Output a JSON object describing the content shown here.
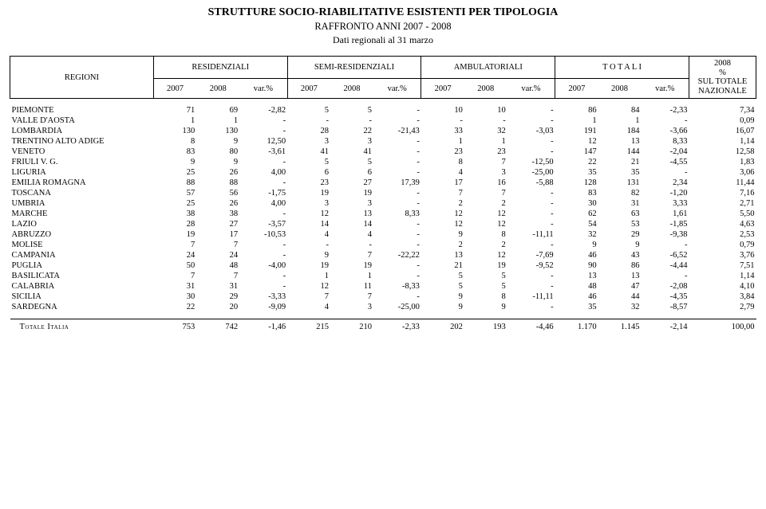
{
  "title_line1": "STRUTTURE SOCIO-RIABILITATIVE  ESISTENTI PER TIPOLOGIA",
  "title_line2": "RAFFRONTO ANNI  2007 - 2008",
  "title_line3": "Dati regionali al 31 marzo",
  "header": {
    "regioni": "REGIONI",
    "groups": [
      "RESIDENZIALI",
      "SEMI-RESIDENZIALI",
      "AMBULATORIALI",
      "T O T A L I"
    ],
    "pct_col": [
      "2008",
      "%",
      "SUL TOTALE",
      "NAZIONALE"
    ],
    "y2007": "2007",
    "y2008": "2008",
    "var": "var.%"
  },
  "rows": [
    {
      "region": "PIEMONTE",
      "r07": "71",
      "r08": "69",
      "rv": "-2,82",
      "s07": "5",
      "s08": "5",
      "sv": "-",
      "a07": "10",
      "a08": "10",
      "av": "-",
      "t07": "86",
      "t08": "84",
      "tv": "-2,33",
      "pct": "7,34"
    },
    {
      "region": "VALLE D'AOSTA",
      "r07": "1",
      "r08": "1",
      "rv": "-",
      "s07": "-",
      "s08": "-",
      "sv": "-",
      "a07": "-",
      "a08": "-",
      "av": "-",
      "t07": "1",
      "t08": "1",
      "tv": "-",
      "pct": "0,09"
    },
    {
      "region": "LOMBARDIA",
      "r07": "130",
      "r08": "130",
      "rv": "-",
      "s07": "28",
      "s08": "22",
      "sv": "-21,43",
      "a07": "33",
      "a08": "32",
      "av": "-3,03",
      "t07": "191",
      "t08": "184",
      "tv": "-3,66",
      "pct": "16,07"
    },
    {
      "region": "TRENTINO ALTO ADIGE",
      "r07": "8",
      "r08": "9",
      "rv": "12,50",
      "s07": "3",
      "s08": "3",
      "sv": "-",
      "a07": "1",
      "a08": "1",
      "av": "-",
      "t07": "12",
      "t08": "13",
      "tv": "8,33",
      "pct": "1,14"
    },
    {
      "region": "VENETO",
      "r07": "83",
      "r08": "80",
      "rv": "-3,61",
      "s07": "41",
      "s08": "41",
      "sv": "-",
      "a07": "23",
      "a08": "23",
      "av": "-",
      "t07": "147",
      "t08": "144",
      "tv": "-2,04",
      "pct": "12,58"
    },
    {
      "region": "FRIULI V. G.",
      "r07": "9",
      "r08": "9",
      "rv": "-",
      "s07": "5",
      "s08": "5",
      "sv": "-",
      "a07": "8",
      "a08": "7",
      "av": "-12,50",
      "t07": "22",
      "t08": "21",
      "tv": "-4,55",
      "pct": "1,83"
    },
    {
      "region": "LIGURIA",
      "r07": "25",
      "r08": "26",
      "rv": "4,00",
      "s07": "6",
      "s08": "6",
      "sv": "-",
      "a07": "4",
      "a08": "3",
      "av": "-25,00",
      "t07": "35",
      "t08": "35",
      "tv": "-",
      "pct": "3,06"
    },
    {
      "region": "EMILIA ROMAGNA",
      "r07": "88",
      "r08": "88",
      "rv": "-",
      "s07": "23",
      "s08": "27",
      "sv": "17,39",
      "a07": "17",
      "a08": "16",
      "av": "-5,88",
      "t07": "128",
      "t08": "131",
      "tv": "2,34",
      "pct": "11,44"
    },
    {
      "region": "TOSCANA",
      "r07": "57",
      "r08": "56",
      "rv": "-1,75",
      "s07": "19",
      "s08": "19",
      "sv": "-",
      "a07": "7",
      "a08": "7",
      "av": "-",
      "t07": "83",
      "t08": "82",
      "tv": "-1,20",
      "pct": "7,16"
    },
    {
      "region": "UMBRIA",
      "r07": "25",
      "r08": "26",
      "rv": "4,00",
      "s07": "3",
      "s08": "3",
      "sv": "-",
      "a07": "2",
      "a08": "2",
      "av": "-",
      "t07": "30",
      "t08": "31",
      "tv": "3,33",
      "pct": "2,71"
    },
    {
      "region": "MARCHE",
      "r07": "38",
      "r08": "38",
      "rv": "-",
      "s07": "12",
      "s08": "13",
      "sv": "8,33",
      "a07": "12",
      "a08": "12",
      "av": "-",
      "t07": "62",
      "t08": "63",
      "tv": "1,61",
      "pct": "5,50"
    },
    {
      "region": "LAZIO",
      "r07": "28",
      "r08": "27",
      "rv": "-3,57",
      "s07": "14",
      "s08": "14",
      "sv": "-",
      "a07": "12",
      "a08": "12",
      "av": "-",
      "t07": "54",
      "t08": "53",
      "tv": "-1,85",
      "pct": "4,63"
    },
    {
      "region": "ABRUZZO",
      "r07": "19",
      "r08": "17",
      "rv": "-10,53",
      "s07": "4",
      "s08": "4",
      "sv": "-",
      "a07": "9",
      "a08": "8",
      "av": "-11,11",
      "t07": "32",
      "t08": "29",
      "tv": "-9,38",
      "pct": "2,53"
    },
    {
      "region": "MOLISE",
      "r07": "7",
      "r08": "7",
      "rv": "-",
      "s07": "-",
      "s08": "-",
      "sv": "-",
      "a07": "2",
      "a08": "2",
      "av": "-",
      "t07": "9",
      "t08": "9",
      "tv": "-",
      "pct": "0,79"
    },
    {
      "region": "CAMPANIA",
      "r07": "24",
      "r08": "24",
      "rv": "-",
      "s07": "9",
      "s08": "7",
      "sv": "-22,22",
      "a07": "13",
      "a08": "12",
      "av": "-7,69",
      "t07": "46",
      "t08": "43",
      "tv": "-6,52",
      "pct": "3,76"
    },
    {
      "region": "PUGLIA",
      "r07": "50",
      "r08": "48",
      "rv": "-4,00",
      "s07": "19",
      "s08": "19",
      "sv": "-",
      "a07": "21",
      "a08": "19",
      "av": "-9,52",
      "t07": "90",
      "t08": "86",
      "tv": "-4,44",
      "pct": "7,51"
    },
    {
      "region": "BASILICATA",
      "r07": "7",
      "r08": "7",
      "rv": "-",
      "s07": "1",
      "s08": "1",
      "sv": "-",
      "a07": "5",
      "a08": "5",
      "av": "-",
      "t07": "13",
      "t08": "13",
      "tv": "-",
      "pct": "1,14"
    },
    {
      "region": "CALABRIA",
      "r07": "31",
      "r08": "31",
      "rv": "-",
      "s07": "12",
      "s08": "11",
      "sv": "-8,33",
      "a07": "5",
      "a08": "5",
      "av": "-",
      "t07": "48",
      "t08": "47",
      "tv": "-2,08",
      "pct": "4,10"
    },
    {
      "region": "SICILIA",
      "r07": "30",
      "r08": "29",
      "rv": "-3,33",
      "s07": "7",
      "s08": "7",
      "sv": "-",
      "a07": "9",
      "a08": "8",
      "av": "-11,11",
      "t07": "46",
      "t08": "44",
      "tv": "-4,35",
      "pct": "3,84"
    },
    {
      "region": "SARDEGNA",
      "r07": "22",
      "r08": "20",
      "rv": "-9,09",
      "s07": "4",
      "s08": "3",
      "sv": "-25,00",
      "a07": "9",
      "a08": "9",
      "av": "-",
      "t07": "35",
      "t08": "32",
      "tv": "-8,57",
      "pct": "2,79"
    }
  ],
  "total": {
    "label": "Totale  Italia",
    "r07": "753",
    "r08": "742",
    "rv": "-1,46",
    "s07": "215",
    "s08": "210",
    "sv": "-2,33",
    "a07": "202",
    "a08": "193",
    "av": "-4,46",
    "t07": "1.170",
    "t08": "1.145",
    "tv": "-2,14",
    "pct": "100,00"
  }
}
